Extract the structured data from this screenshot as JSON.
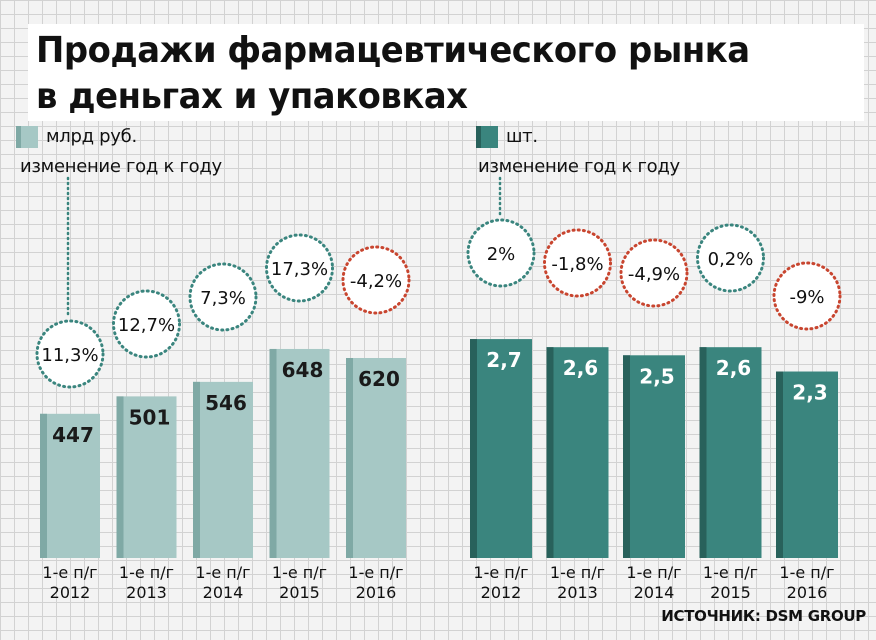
{
  "title": "Продажи фармацевтического рынка\nв деньгах и упаковках",
  "source": "ИСТОЧНИК: DSM GROUP",
  "colors": {
    "money_bar": "#a6c8c5",
    "money_bar_side": "#7fa9a5",
    "packs_bar": "#3a857e",
    "packs_bar_side": "#28615b",
    "positive_ring": "#3a857e",
    "negative_ring": "#c8452f"
  },
  "chart_data": [
    {
      "type": "bar",
      "legend_label": "млрд руб.",
      "change_label": "изменение год к году",
      "categories": [
        [
          "1-е п/г",
          "2012"
        ],
        [
          "1-е п/г",
          "2013"
        ],
        [
          "1-е п/г",
          "2014"
        ],
        [
          "1-е п/г",
          "2015"
        ],
        [
          "1-е п/г",
          "2016"
        ]
      ],
      "values": [
        447,
        501,
        546,
        648,
        620
      ],
      "value_labels": [
        "447",
        "501",
        "546",
        "648",
        "620"
      ],
      "changes": [
        11.3,
        12.7,
        7.3,
        17.3,
        -4.2
      ],
      "change_labels": [
        "11,3%",
        "12,7%",
        "7,3%",
        "17,3%",
        "-4,2%"
      ],
      "ylim": [
        0,
        930
      ]
    },
    {
      "type": "bar",
      "legend_label": "шт.",
      "change_label": "изменение год к году",
      "categories": [
        [
          "1-е п/г",
          "2012"
        ],
        [
          "1-е п/г",
          "2013"
        ],
        [
          "1-е п/г",
          "2014"
        ],
        [
          "1-е п/г",
          "2015"
        ],
        [
          "1-е п/г",
          "2016"
        ]
      ],
      "values": [
        2.7,
        2.6,
        2.5,
        2.6,
        2.3
      ],
      "value_labels": [
        "2,7",
        "2,6",
        "2,5",
        "2,6",
        "2,3"
      ],
      "changes": [
        2,
        -1.8,
        -4.9,
        0.2,
        -9
      ],
      "change_labels": [
        "2%",
        "-1,8%",
        "-4,9%",
        "0,2%",
        "-9%"
      ],
      "ylim": [
        0,
        3.7
      ]
    }
  ]
}
